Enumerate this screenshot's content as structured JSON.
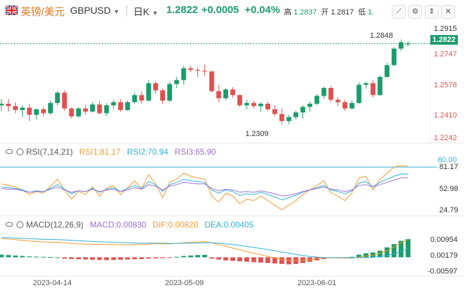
{
  "header": {
    "pair_cn": "英镑/美元",
    "pair_code": "GBPUSD",
    "timeframe": "日K",
    "last": "1.2822",
    "change": "+0.0005",
    "change_pct": "+0.04%",
    "high_label": "高",
    "high": "1.2837",
    "open_label": "开",
    "open": "1.2817",
    "low_label": "低",
    "low": "1."
  },
  "toolbar": {
    "icons": [
      "indicator-icon",
      "settings-icon",
      "fullscreen-icon",
      "close-icon"
    ]
  },
  "price_axis": [
    "1.2915",
    "1.2747",
    "1.2578",
    "1.2410",
    "1.2242"
  ],
  "last_price_tag": "1.2822",
  "annotations": {
    "high_mark": "1.2848",
    "low_mark": "1.2309"
  },
  "rsi": {
    "title": "RSI(7,14,21)",
    "rsi1": "RSI1:81.17",
    "rsi2": "RSI2:70.94",
    "rsi3": "RSI3:65.90",
    "axis": [
      "81.17",
      "52.98",
      "24.79"
    ],
    "tag": "80.00"
  },
  "macd": {
    "title": "MACD(12,26,9)",
    "macd": "MACD:0.00830",
    "dif": "DIF:0.00820",
    "dea": "DEA:0.00405",
    "axis": [
      "0.00954",
      "0.00179",
      "-0.00597"
    ]
  },
  "date_axis": [
    "2023-04-14",
    "2023-05-09",
    "2023-06-01"
  ],
  "colors": {
    "up": "#1a9c6b",
    "down": "#e05050",
    "rsi1": "#f19a2f",
    "rsi2": "#2fb0d6",
    "rsi3": "#9b6fd0"
  },
  "chart_data": {
    "type": "candlestick",
    "price_range": [
      1.22,
      1.295
    ],
    "candles": [
      {
        "o": 1.243,
        "h": 1.247,
        "l": 1.2395,
        "c": 1.244
      },
      {
        "o": 1.244,
        "h": 1.247,
        "l": 1.239,
        "c": 1.2425
      },
      {
        "o": 1.2425,
        "h": 1.245,
        "l": 1.238,
        "c": 1.24
      },
      {
        "o": 1.24,
        "h": 1.243,
        "l": 1.2355,
        "c": 1.2415
      },
      {
        "o": 1.2415,
        "h": 1.244,
        "l": 1.233,
        "c": 1.237
      },
      {
        "o": 1.237,
        "h": 1.241,
        "l": 1.234,
        "c": 1.2405
      },
      {
        "o": 1.2405,
        "h": 1.242,
        "l": 1.236,
        "c": 1.238
      },
      {
        "o": 1.238,
        "h": 1.246,
        "l": 1.237,
        "c": 1.2445
      },
      {
        "o": 1.2445,
        "h": 1.252,
        "l": 1.243,
        "c": 1.251
      },
      {
        "o": 1.251,
        "h": 1.2525,
        "l": 1.2395,
        "c": 1.241
      },
      {
        "o": 1.241,
        "h": 1.242,
        "l": 1.2345,
        "c": 1.236
      },
      {
        "o": 1.236,
        "h": 1.242,
        "l": 1.235,
        "c": 1.241
      },
      {
        "o": 1.241,
        "h": 1.243,
        "l": 1.237,
        "c": 1.239
      },
      {
        "o": 1.239,
        "h": 1.245,
        "l": 1.2385,
        "c": 1.2435
      },
      {
        "o": 1.2435,
        "h": 1.246,
        "l": 1.237,
        "c": 1.238
      },
      {
        "o": 1.238,
        "h": 1.2445,
        "l": 1.236,
        "c": 1.243
      },
      {
        "o": 1.243,
        "h": 1.2465,
        "l": 1.2405,
        "c": 1.245
      },
      {
        "o": 1.245,
        "h": 1.247,
        "l": 1.239,
        "c": 1.24
      },
      {
        "o": 1.24,
        "h": 1.246,
        "l": 1.2395,
        "c": 1.245
      },
      {
        "o": 1.245,
        "h": 1.251,
        "l": 1.244,
        "c": 1.2495
      },
      {
        "o": 1.2495,
        "h": 1.252,
        "l": 1.244,
        "c": 1.246
      },
      {
        "o": 1.246,
        "h": 1.259,
        "l": 1.2455,
        "c": 1.257
      },
      {
        "o": 1.257,
        "h": 1.2585,
        "l": 1.2505,
        "c": 1.2525
      },
      {
        "o": 1.2525,
        "h": 1.2535,
        "l": 1.244,
        "c": 1.246
      },
      {
        "o": 1.246,
        "h": 1.258,
        "l": 1.245,
        "c": 1.2565
      },
      {
        "o": 1.2565,
        "h": 1.261,
        "l": 1.254,
        "c": 1.259
      },
      {
        "o": 1.259,
        "h": 1.268,
        "l": 1.256,
        "c": 1.2665
      },
      {
        "o": 1.2665,
        "h": 1.268,
        "l": 1.264,
        "c": 1.2655
      },
      {
        "o": 1.2655,
        "h": 1.267,
        "l": 1.261,
        "c": 1.265
      },
      {
        "o": 1.265,
        "h": 1.269,
        "l": 1.2615,
        "c": 1.2645
      },
      {
        "o": 1.2645,
        "h": 1.265,
        "l": 1.251,
        "c": 1.252
      },
      {
        "o": 1.252,
        "h": 1.256,
        "l": 1.245,
        "c": 1.2475
      },
      {
        "o": 1.2475,
        "h": 1.254,
        "l": 1.2465,
        "c": 1.253
      },
      {
        "o": 1.253,
        "h": 1.2545,
        "l": 1.248,
        "c": 1.2495
      },
      {
        "o": 1.2495,
        "h": 1.25,
        "l": 1.242,
        "c": 1.243
      },
      {
        "o": 1.243,
        "h": 1.2465,
        "l": 1.2405,
        "c": 1.2445
      },
      {
        "o": 1.2445,
        "h": 1.246,
        "l": 1.241,
        "c": 1.2425
      },
      {
        "o": 1.2425,
        "h": 1.245,
        "l": 1.239,
        "c": 1.244
      },
      {
        "o": 1.244,
        "h": 1.2455,
        "l": 1.2395,
        "c": 1.2405
      },
      {
        "o": 1.2405,
        "h": 1.243,
        "l": 1.236,
        "c": 1.2375
      },
      {
        "o": 1.2375,
        "h": 1.241,
        "l": 1.2309,
        "c": 1.233
      },
      {
        "o": 1.233,
        "h": 1.237,
        "l": 1.231,
        "c": 1.2355
      },
      {
        "o": 1.2355,
        "h": 1.2395,
        "l": 1.234,
        "c": 1.2385
      },
      {
        "o": 1.2385,
        "h": 1.243,
        "l": 1.2345,
        "c": 1.242
      },
      {
        "o": 1.242,
        "h": 1.2455,
        "l": 1.239,
        "c": 1.244
      },
      {
        "o": 1.244,
        "h": 1.25,
        "l": 1.243,
        "c": 1.249
      },
      {
        "o": 1.249,
        "h": 1.255,
        "l": 1.247,
        "c": 1.254
      },
      {
        "o": 1.254,
        "h": 1.2555,
        "l": 1.245,
        "c": 1.2465
      },
      {
        "o": 1.2465,
        "h": 1.248,
        "l": 1.2425,
        "c": 1.245
      },
      {
        "o": 1.245,
        "h": 1.2465,
        "l": 1.2395,
        "c": 1.241
      },
      {
        "o": 1.241,
        "h": 1.246,
        "l": 1.2405,
        "c": 1.2445
      },
      {
        "o": 1.2445,
        "h": 1.2575,
        "l": 1.244,
        "c": 1.256
      },
      {
        "o": 1.256,
        "h": 1.258,
        "l": 1.2535,
        "c": 1.257
      },
      {
        "o": 1.257,
        "h": 1.259,
        "l": 1.248,
        "c": 1.2495
      },
      {
        "o": 1.2495,
        "h": 1.262,
        "l": 1.249,
        "c": 1.261
      },
      {
        "o": 1.261,
        "h": 1.27,
        "l": 1.2605,
        "c": 1.2685
      },
      {
        "o": 1.2685,
        "h": 1.28,
        "l": 1.268,
        "c": 1.279
      },
      {
        "o": 1.279,
        "h": 1.2848,
        "l": 1.2775,
        "c": 1.283
      },
      {
        "o": 1.2817,
        "h": 1.2837,
        "l": 1.2805,
        "c": 1.2822
      }
    ],
    "rsi_series": [
      {
        "name": "RSI1",
        "values": [
          58,
          56,
          54,
          50,
          44,
          48,
          46,
          55,
          64,
          50,
          38,
          48,
          44,
          54,
          42,
          52,
          56,
          44,
          53,
          62,
          52,
          70,
          58,
          40,
          60,
          64,
          72,
          68,
          66,
          64,
          42,
          34,
          46,
          42,
          32,
          38,
          36,
          42,
          36,
          30,
          24,
          30,
          36,
          44,
          50,
          56,
          62,
          46,
          42,
          36,
          46,
          66,
          68,
          50,
          64,
          72,
          80,
          82,
          81
        ]
      },
      {
        "name": "RSI2",
        "values": [
          54,
          53,
          52,
          50,
          47,
          49,
          48,
          52,
          57,
          51,
          45,
          49,
          48,
          52,
          47,
          51,
          53,
          48,
          52,
          56,
          52,
          61,
          57,
          48,
          57,
          60,
          64,
          62,
          61,
          60,
          50,
          46,
          50,
          48,
          43,
          45,
          44,
          47,
          44,
          41,
          37,
          40,
          43,
          47,
          50,
          53,
          56,
          50,
          48,
          45,
          49,
          59,
          61,
          54,
          60,
          64,
          68,
          71,
          70.94
        ]
      },
      {
        "name": "RSI3",
        "values": [
          52,
          51,
          51,
          49,
          47,
          48,
          48,
          51,
          54,
          50,
          47,
          49,
          48,
          51,
          48,
          50,
          51,
          48,
          50,
          53,
          51,
          57,
          55,
          50,
          55,
          57,
          60,
          59,
          58,
          58,
          52,
          49,
          51,
          50,
          47,
          48,
          47,
          49,
          47,
          45,
          42,
          43,
          45,
          48,
          50,
          52,
          54,
          51,
          50,
          48,
          50,
          56,
          57,
          54,
          57,
          60,
          63,
          66,
          65.9
        ]
      }
    ],
    "rsi_range": [
      18,
      90
    ],
    "macd_hist": [
      0.0012,
      0.001,
      0.0008,
      0.0006,
      0.0004,
      0.0003,
      0.0002,
      0.0001,
      0.0,
      -0.0006,
      -0.0008,
      -0.0009,
      -0.001,
      -0.0011,
      -0.0012,
      -0.0013,
      -0.0012,
      -0.0011,
      -0.001,
      -0.0009,
      -0.0008,
      -0.0006,
      -0.0005,
      -0.0004,
      -0.0002,
      0.0002,
      0.0006,
      0.0008,
      0.001,
      0.0011,
      -0.0006,
      -0.001,
      -0.0014,
      -0.0016,
      -0.0018,
      -0.002,
      -0.0022,
      -0.0024,
      -0.0026,
      -0.0028,
      -0.003,
      -0.0032,
      -0.003,
      -0.0026,
      -0.002,
      -0.0014,
      -0.0008,
      -0.0004,
      -0.0002,
      0.0,
      0.0002,
      0.0012,
      0.0018,
      0.0022,
      0.003,
      0.0045,
      0.006,
      0.0075,
      0.0083
    ],
    "macd_dif": [
      0.0085,
      0.0083,
      0.008,
      0.0077,
      0.0074,
      0.0072,
      0.007,
      0.0069,
      0.0068,
      0.0066,
      0.0063,
      0.0061,
      0.006,
      0.006,
      0.0059,
      0.0058,
      0.0058,
      0.0057,
      0.0057,
      0.0058,
      0.0058,
      0.006,
      0.0062,
      0.0061,
      0.0061,
      0.0063,
      0.0066,
      0.0068,
      0.007,
      0.0071,
      0.0066,
      0.0058,
      0.005,
      0.0042,
      0.0034,
      0.0026,
      0.0018,
      0.0011,
      0.0004,
      -0.0003,
      -0.0009,
      -0.0013,
      -0.0014,
      -0.0013,
      -0.001,
      -0.0006,
      -0.0003,
      -0.0002,
      -0.0003,
      -0.0004,
      -0.0003,
      0.0001,
      0.0006,
      0.001,
      0.0018,
      0.003,
      0.0047,
      0.0066,
      0.0082
    ],
    "macd_dea": [
      0.009,
      0.0089,
      0.0088,
      0.0086,
      0.0085,
      0.0083,
      0.0082,
      0.0081,
      0.008,
      0.0079,
      0.0077,
      0.0075,
      0.0074,
      0.0072,
      0.0071,
      0.0069,
      0.0068,
      0.0067,
      0.0066,
      0.0065,
      0.0064,
      0.0064,
      0.0064,
      0.0064,
      0.0063,
      0.0063,
      0.0064,
      0.0064,
      0.0065,
      0.0066,
      0.0066,
      0.0064,
      0.0061,
      0.0058,
      0.0054,
      0.0049,
      0.0045,
      0.004,
      0.0035,
      0.003,
      0.0024,
      0.0019,
      0.0013,
      0.0008,
      0.0004,
      0.0001,
      -0.0001,
      -0.0002,
      -0.0002,
      -0.0002,
      -0.0002,
      -0.0002,
      -0.0001,
      0.0,
      0.0003,
      0.0008,
      0.0015,
      0.0025,
      0.004
    ],
    "macd_range": [
      -0.008,
      0.012
    ]
  }
}
